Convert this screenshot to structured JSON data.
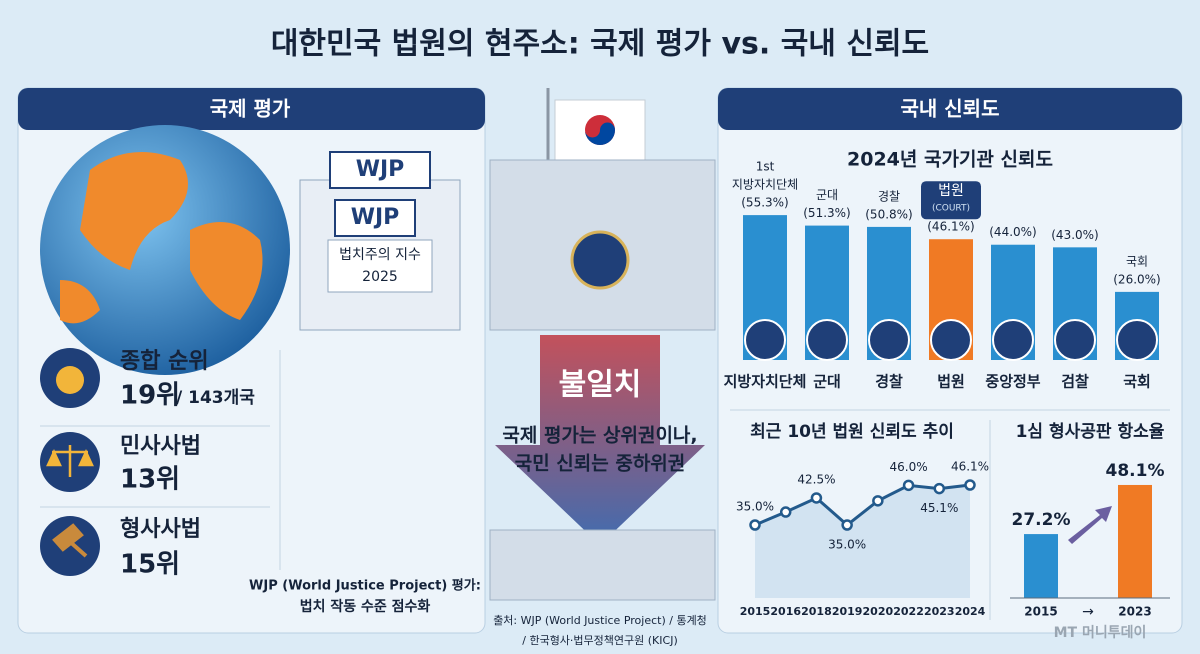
{
  "title": "대한민국 법원의 현주소: 국제 평가 vs. 국내 신뢰도",
  "left_panel": {
    "header": "국제 평가",
    "logo_sign": "WJP",
    "building_sign": "WJP",
    "index_name": "법치주의 지수",
    "index_year": "2025",
    "rankings": [
      {
        "label": "종합 순위",
        "rank": "19위",
        "note": "/ 143개국"
      },
      {
        "label": "민사사법",
        "rank": "13위"
      },
      {
        "label": "형사사법",
        "rank": "15위"
      }
    ],
    "footnote": [
      "WJP (World Justice Project) 평가:",
      "법치 작동 수준 점수화"
    ]
  },
  "middle": {
    "headline": "불일치",
    "lines": [
      "국제 평가는 상위권이나,",
      "국민 신뢰는 중하위권"
    ],
    "source": [
      "출처: WJP (World Justice Project) / 통계청",
      "/ 한국형사·법무정책연구원 (KICJ)"
    ]
  },
  "right_panel": {
    "header": "국내 신뢰도"
  },
  "watermark": "MT 머니투데이",
  "chart_data": [
    {
      "type": "bar",
      "title": "2024년 국가기관 신뢰도",
      "categories": [
        "지방자치단체",
        "군대",
        "경찰",
        "법원",
        "중앙정부",
        "검찰",
        "국회"
      ],
      "values": [
        55.3,
        51.3,
        50.8,
        46.1,
        44.0,
        43.0,
        26.0
      ],
      "value_labels": [
        "(55.3%)",
        "(51.3%)",
        "(50.8%)",
        "(46.1%)",
        "(44.0%)",
        "(43.0%)",
        "(26.0%)"
      ],
      "top_labels": [
        "지방자치단체",
        "군대",
        "경찰",
        "법원",
        null,
        null,
        "국회"
      ],
      "rank_note": "1st",
      "highlight_note": "(COURT)",
      "colors": [
        "#2a8fd0",
        "#2a8fd0",
        "#2a8fd0",
        "#f07a24",
        "#2a8fd0",
        "#2a8fd0",
        "#2a8fd0"
      ]
    },
    {
      "type": "line",
      "title": "최근 10년 법원 신뢰도 추이",
      "categories": [
        "2015",
        "2016",
        "2018",
        "2019",
        "2020",
        "2022",
        "2023",
        "2024"
      ],
      "values": [
        35.0,
        38.6,
        42.5,
        35.0,
        41.7,
        46.0,
        45.1,
        46.1
      ],
      "value_labels": [
        "35.0%",
        null,
        "42.5%",
        "35.0%",
        null,
        "46.0%",
        "45.1%",
        "46.1%"
      ],
      "color": "#235a8c"
    },
    {
      "type": "bar",
      "title": "1심 형사공판 항소율",
      "categories": [
        "2015",
        "2023"
      ],
      "values": [
        27.2,
        48.1
      ],
      "value_labels": [
        "27.2%",
        "48.1%"
      ],
      "axis_arrow": "→",
      "colors": [
        "#2a8fd0",
        "#f07a24"
      ]
    }
  ]
}
